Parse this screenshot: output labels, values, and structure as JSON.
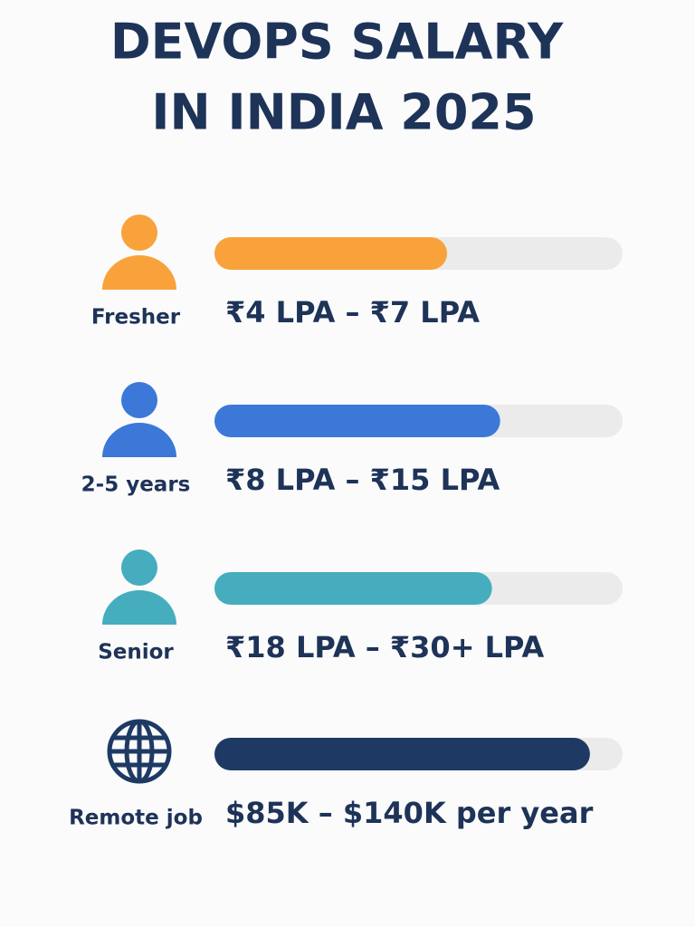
{
  "chart_data": {
    "type": "bar",
    "title_lines": [
      "DEVOPS SALARY",
      "IN INDIA 2025"
    ],
    "xlim": [
      0,
      100
    ],
    "categories": [
      "Fresher",
      "2-5 years",
      "Senior",
      "Remote job"
    ],
    "values": [
      57,
      70,
      68,
      92
    ],
    "ranges": [
      "₹4 LPA – ₹7 LPA",
      "₹8 LPA – ₹15 LPA",
      "₹18 LPA – ₹30+ LPA",
      "$85K – $140K per year"
    ],
    "colors": [
      "#f9a23b",
      "#3b78d8",
      "#45adbd",
      "#1e3a64"
    ],
    "icons": [
      "person",
      "person",
      "person",
      "globe"
    ],
    "track_color": "#ebebeb"
  }
}
